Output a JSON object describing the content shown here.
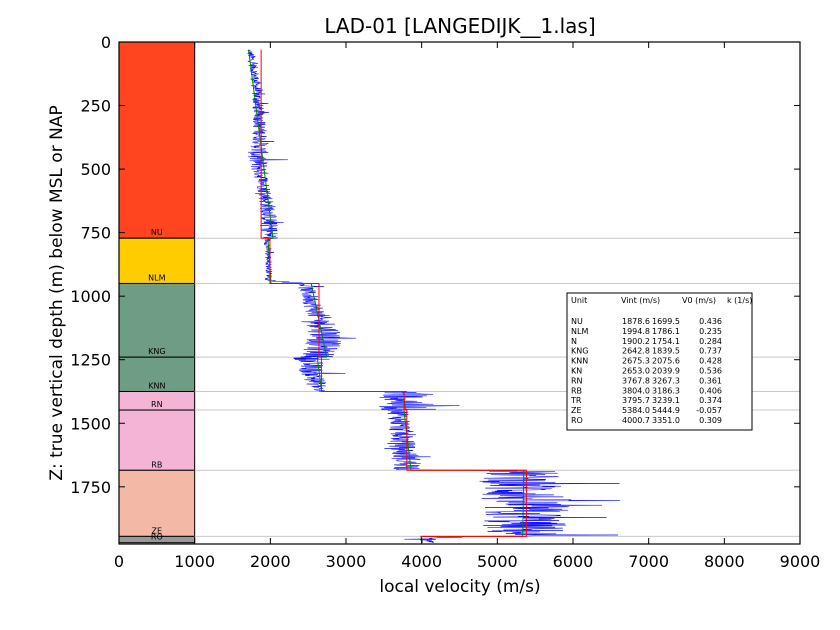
{
  "chart_data": {
    "type": "line",
    "title": "LAD-01 [LANGEDIJK__1.las]",
    "xlabel": "local velocity (m/s)",
    "ylabel": "Z: true vertical depth (m) below MSL or NAP",
    "xlim": [
      0,
      9000
    ],
    "ylim": [
      1975,
      0
    ],
    "xticks": [
      "0",
      "1000",
      "2000",
      "3000",
      "4000",
      "5000",
      "6000",
      "7000",
      "8000",
      "9000"
    ],
    "yticks": [
      "0",
      "250",
      "500",
      "750",
      "1000",
      "1250",
      "1500",
      "1750"
    ],
    "units": [
      {
        "name": "NU",
        "top": 0,
        "bottom": 772,
        "color": "#ff4520"
      },
      {
        "name": "NLM",
        "top": 772,
        "bottom": 950,
        "color": "#ffcc00"
      },
      {
        "name": "KNG",
        "top": 950,
        "bottom": 1240,
        "color": "#6f9c84"
      },
      {
        "name": "KNN",
        "top": 1240,
        "bottom": 1375,
        "color": "#6f9c84"
      },
      {
        "name": "RN",
        "top": 1375,
        "bottom": 1448,
        "color": "#f4b4d6"
      },
      {
        "name": "RB",
        "top": 1448,
        "bottom": 1685,
        "color": "#f4b4d6"
      },
      {
        "name": "ZE",
        "top": 1685,
        "bottom": 1945,
        "color": "#f4b9a6"
      },
      {
        "name": "RO",
        "top": 1945,
        "bottom": 1970,
        "color": "#999999"
      }
    ],
    "boundaries": [
      772,
      950,
      1240,
      1375,
      1448,
      1685,
      1945
    ],
    "vint_steps": [
      {
        "top": 30,
        "bottom": 772,
        "v": 1878.6
      },
      {
        "top": 772,
        "bottom": 950,
        "v": 1994.8
      },
      {
        "top": 950,
        "bottom": 1240,
        "v": 2642.8
      },
      {
        "top": 1240,
        "bottom": 1375,
        "v": 2675.3
      },
      {
        "top": 1375,
        "bottom": 1448,
        "v": 3767.8
      },
      {
        "top": 1448,
        "bottom": 1685,
        "v": 3804.0
      },
      {
        "top": 1685,
        "bottom": 1945,
        "v": 5384.0
      },
      {
        "top": 1945,
        "bottom": 1970,
        "v": 4000.7
      }
    ],
    "trend_lines": [
      {
        "unit": "NU",
        "z_top": 30,
        "z_bottom": 772,
        "v_top": 1712,
        "v_bottom": 2035
      },
      {
        "unit": "NLM",
        "z_top": 772,
        "z_bottom": 950,
        "v_top": 1968,
        "v_bottom": 2010
      },
      {
        "unit": "KNG",
        "z_top": 950,
        "z_bottom": 1240,
        "v_top": 2540,
        "v_bottom": 2745
      },
      {
        "unit": "KNN",
        "z_top": 1240,
        "z_bottom": 1375,
        "v_top": 2620,
        "v_bottom": 2678
      },
      {
        "unit": "RN",
        "z_top": 1375,
        "z_bottom": 1448,
        "v_top": 3760,
        "v_bottom": 3786
      },
      {
        "unit": "RB",
        "z_top": 1448,
        "z_bottom": 1685,
        "v_top": 3765,
        "v_bottom": 3860
      },
      {
        "unit": "ZE",
        "z_top": 1685,
        "z_bottom": 1945,
        "v_top": 5350,
        "v_bottom": 5335
      },
      {
        "unit": "RO",
        "z_top": 1945,
        "z_bottom": 1970,
        "v_top": 3990,
        "v_bottom": 4010
      }
    ],
    "velocity_log_profile": [
      {
        "z": 30,
        "v": 1720,
        "noise": 30
      },
      {
        "z": 60,
        "v": 1750,
        "noise": 60
      },
      {
        "z": 120,
        "v": 1790,
        "noise": 60
      },
      {
        "z": 200,
        "v": 1820,
        "noise": 70
      },
      {
        "z": 300,
        "v": 1850,
        "noise": 80
      },
      {
        "z": 400,
        "v": 1870,
        "noise": 110
      },
      {
        "z": 450,
        "v": 1820,
        "noise": 150
      },
      {
        "z": 550,
        "v": 1900,
        "noise": 90
      },
      {
        "z": 650,
        "v": 1970,
        "noise": 110
      },
      {
        "z": 771,
        "v": 2000,
        "noise": 120
      },
      {
        "z": 772,
        "v": 1960,
        "noise": 50
      },
      {
        "z": 940,
        "v": 1990,
        "noise": 40
      },
      {
        "z": 950,
        "v": 2450,
        "noise": 100
      },
      {
        "z": 1060,
        "v": 2600,
        "noise": 140
      },
      {
        "z": 1150,
        "v": 2750,
        "noise": 250
      },
      {
        "z": 1239,
        "v": 2620,
        "noise": 220
      },
      {
        "z": 1240,
        "v": 2500,
        "noise": 200
      },
      {
        "z": 1300,
        "v": 2550,
        "noise": 160
      },
      {
        "z": 1374,
        "v": 2650,
        "noise": 120
      },
      {
        "z": 1375,
        "v": 3750,
        "noise": 300
      },
      {
        "z": 1447,
        "v": 3800,
        "noise": 400
      },
      {
        "z": 1448,
        "v": 3700,
        "noise": 150
      },
      {
        "z": 1600,
        "v": 3750,
        "noise": 180
      },
      {
        "z": 1684,
        "v": 3850,
        "noise": 220
      },
      {
        "z": 1685,
        "v": 5300,
        "noise": 500
      },
      {
        "z": 1800,
        "v": 5350,
        "noise": 650
      },
      {
        "z": 1944,
        "v": 5350,
        "noise": 550
      },
      {
        "z": 1945,
        "v": 4000,
        "noise": 300
      },
      {
        "z": 1970,
        "v": 4000,
        "noise": 150
      }
    ],
    "table": {
      "header": [
        "Unit",
        "Vint (m/s)",
        "V0 (m/s)",
        "k (1/s)"
      ],
      "rows": [
        [
          "NU",
          "1878.6",
          "1699.5",
          "0.436"
        ],
        [
          "NLM",
          "1994.8",
          "1786.1",
          "0.235"
        ],
        [
          "N",
          "1900.2",
          "1754.1",
          "0.284"
        ],
        [
          "KNG",
          "2642.8",
          "1839.5",
          "0.737"
        ],
        [
          "KNN",
          "2675.3",
          "2075.6",
          "0.428"
        ],
        [
          "KN",
          "2653.0",
          "2039.9",
          "0.536"
        ],
        [
          "RN",
          "3767.8",
          "3267.3",
          "0.361"
        ],
        [
          "RB",
          "3804.0",
          "3186.3",
          "0.406"
        ],
        [
          "TR",
          "3795.7",
          "3239.1",
          "0.374"
        ],
        [
          "ZE",
          "5384.0",
          "5444.9",
          "-0.057"
        ],
        [
          "RO",
          "4000.7",
          "3351.0",
          "0.309"
        ]
      ]
    },
    "colors": {
      "log": "#0000ff",
      "vint": "#ff0000",
      "trend": "#008000",
      "grid": "#c8c8c8"
    }
  }
}
